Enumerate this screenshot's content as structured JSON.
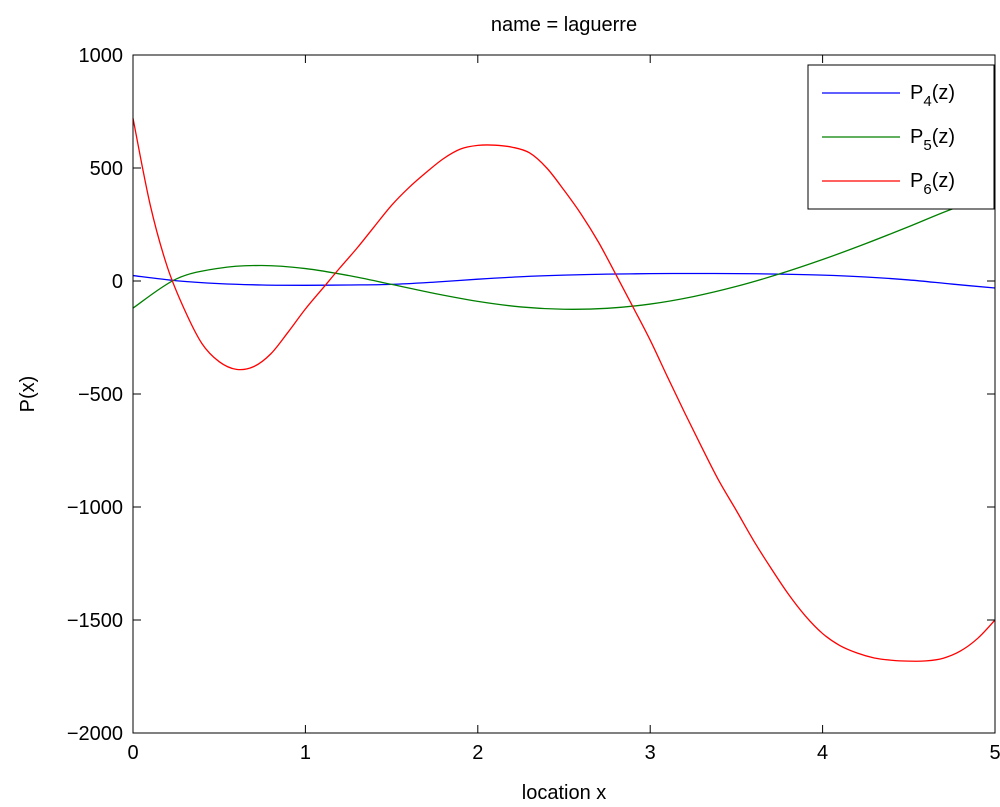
{
  "chart_data": {
    "type": "line",
    "title": "name = laguerre",
    "xlabel": "location x",
    "ylabel": "P(x)",
    "xlim": [
      0,
      5
    ],
    "ylim": [
      -2000,
      1000
    ],
    "xticks": [
      "0",
      "1",
      "2",
      "3",
      "4",
      "5"
    ],
    "yticks": [
      "1000",
      "500",
      "0",
      "−500",
      "−1000",
      "−1500",
      "−2000"
    ],
    "grid": false,
    "legend_position": "top-right",
    "series": [
      {
        "name": "P4(z)",
        "label_base": "P",
        "label_sub": "4",
        "label_tail": "(z)",
        "color": "#0000ff",
        "x": [
          0,
          0.25,
          0.5,
          0.75,
          1,
          1.25,
          1.5,
          1.75,
          2,
          2.25,
          2.5,
          2.75,
          3,
          3.25,
          3.5,
          3.75,
          4,
          4.25,
          4.5,
          4.75,
          5
        ],
        "y": [
          24,
          1.3,
          -11.6,
          -17.6,
          -19,
          -17.6,
          -15,
          -4.9,
          8,
          18.9,
          26,
          30.3,
          32.5,
          33.3,
          32.8,
          30.5,
          26,
          17.7,
          4.8,
          -13.6,
          -31
        ]
      },
      {
        "name": "P5(z)",
        "label_base": "P",
        "label_sub": "5",
        "label_tail": "(z)",
        "color": "#008000",
        "x": [
          0,
          0.25,
          0.5,
          0.75,
          1,
          1.25,
          1.5,
          1.75,
          2,
          2.25,
          2.5,
          2.75,
          3,
          3.25,
          3.5,
          3.75,
          4,
          4.25,
          4.5,
          4.75,
          5
        ],
        "y": [
          -120,
          8.7,
          56.6,
          68.6,
          55,
          24.2,
          -15,
          -55.3,
          -90,
          -114.7,
          -125,
          -120.9,
          -102,
          -69,
          -24,
          31.3,
          95,
          165.4,
          240.6,
          318.2,
          380
        ]
      },
      {
        "name": "P6(z)",
        "label_base": "P",
        "label_sub": "6",
        "label_tail": "(z)",
        "color": "#ff0000",
        "x": [
          0,
          0.1,
          0.2,
          0.3,
          0.4,
          0.5,
          0.6,
          0.7,
          0.8,
          0.9,
          1,
          1.1,
          1.2,
          1.3,
          1.4,
          1.5,
          1.6,
          1.7,
          1.8,
          1.9,
          2,
          2.1,
          2.2,
          2.3,
          2.4,
          2.5,
          2.6,
          2.7,
          2.8,
          2.9,
          3,
          3.1,
          3.2,
          3.3,
          3.4,
          3.5,
          3.6,
          3.7,
          3.8,
          3.9,
          4,
          4.1,
          4.2,
          4.3,
          4.4,
          4.5,
          4.6,
          4.7,
          4.8,
          4.9,
          5
        ],
        "y": [
          720,
          336,
          60,
          -129,
          -277,
          -357,
          -391,
          -379,
          -322,
          -226,
          -124,
          -33,
          58,
          146,
          241,
          335,
          413,
          480,
          541,
          584,
          600,
          601,
          592,
          567,
          500,
          402,
          295,
          172,
          30,
          -115,
          -262,
          -424,
          -583,
          -737,
          -886,
          -1016,
          -1149,
          -1270,
          -1384,
          -1482,
          -1560,
          -1613,
          -1646,
          -1668,
          -1678,
          -1682,
          -1681,
          -1669,
          -1637,
          -1581,
          -1500
        ]
      }
    ]
  }
}
